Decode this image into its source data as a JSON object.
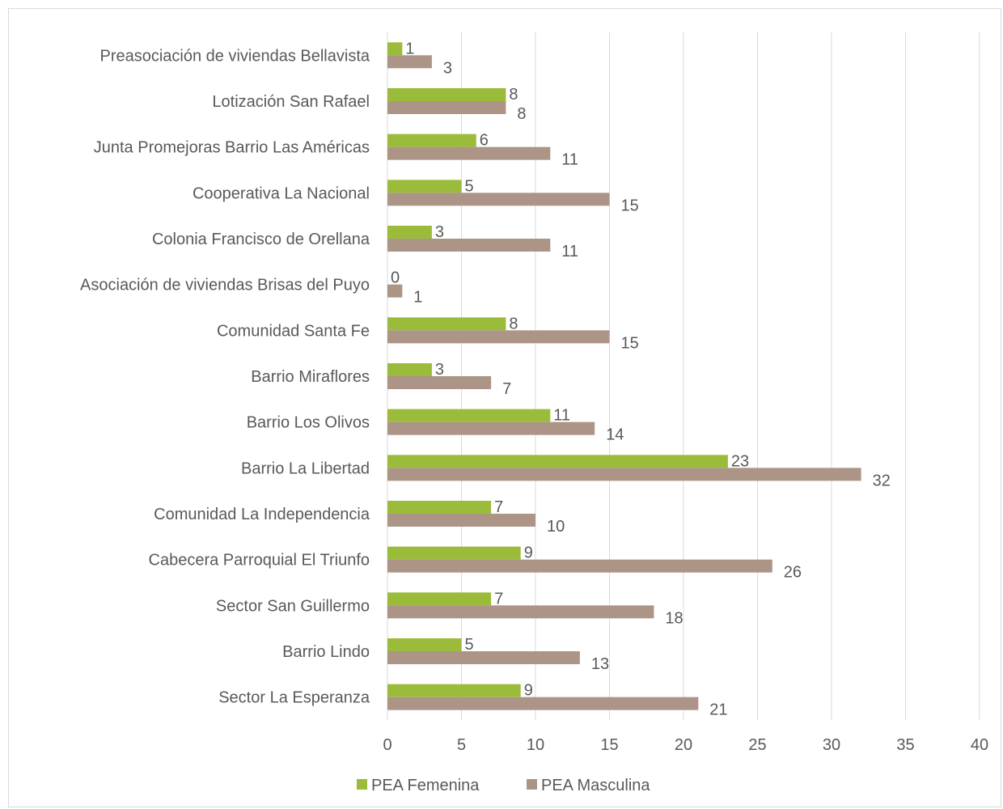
{
  "chart_data": {
    "type": "bar",
    "orientation": "horizontal",
    "categories": [
      "Preasociación de viviendas Bellavista",
      "Lotización San Rafael",
      "Junta Promejoras Barrio Las Américas",
      "Cooperativa La Nacional",
      "Colonia Francisco de Orellana",
      "Asociación de viviendas Brisas del Puyo",
      "Comunidad Santa Fe",
      "Barrio Miraflores",
      "Barrio Los Olivos",
      "Barrio La Libertad",
      "Comunidad La Independencia",
      "Cabecera Parroquial El Triunfo",
      "Sector San Guillermo",
      "Barrio Lindo",
      "Sector La Esperanza"
    ],
    "series": [
      {
        "name": "PEA Femenina",
        "color": "#9bbb3b",
        "values": [
          1,
          8,
          6,
          5,
          3,
          0,
          8,
          3,
          11,
          23,
          7,
          9,
          7,
          5,
          9
        ]
      },
      {
        "name": "PEA Masculina",
        "color": "#ac9486",
        "values": [
          3,
          8,
          11,
          15,
          11,
          1,
          15,
          7,
          14,
          32,
          10,
          26,
          18,
          13,
          21
        ]
      }
    ],
    "xlim": [
      0,
      40
    ],
    "xticks": [
      "0",
      "5",
      "10",
      "15",
      "20",
      "25",
      "30",
      "35",
      "40"
    ],
    "grid": "vertical",
    "legend": "bottom",
    "data_labels": true
  }
}
